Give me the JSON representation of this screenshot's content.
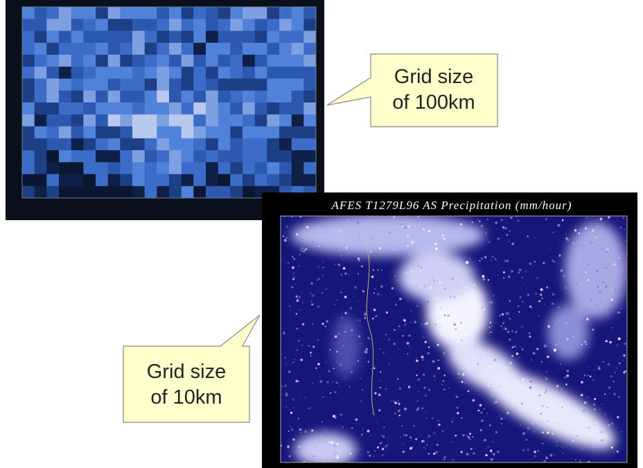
{
  "images": [
    {
      "title": null
    },
    {
      "title": "AFES T1279L96 AS Precipitation (mm/hour)"
    }
  ],
  "callouts": [
    {
      "lines": [
        "Grid size",
        "of 100km"
      ]
    },
    {
      "lines": [
        "Grid size",
        "of 10km"
      ]
    }
  ]
}
